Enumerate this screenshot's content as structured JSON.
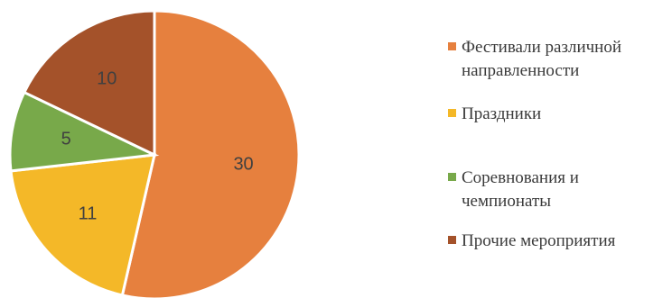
{
  "chart_data": {
    "type": "pie",
    "categories": [
      "Фестивали различной направленности",
      "Праздники",
      "Соревнования и чемпионаты",
      "Прочие мероприятия"
    ],
    "values": [
      30,
      11,
      5,
      10
    ],
    "colors": [
      "#E6803E",
      "#F4B828",
      "#78A94A",
      "#A4522A"
    ],
    "data_labels": [
      "30",
      "11",
      "5",
      "10"
    ],
    "start_angle": "12 o'clock",
    "direction": "clockwise",
    "legend_position": "right",
    "title": ""
  },
  "legend": {
    "items": [
      {
        "label": "Фестивали различной направленности",
        "color": "#E6803E"
      },
      {
        "label": "Праздники",
        "color": "#F4B828"
      },
      {
        "label": "Соревнования и чемпионаты",
        "color": "#78A94A"
      },
      {
        "label": "Прочие мероприятия",
        "color": "#A4522A"
      }
    ]
  }
}
